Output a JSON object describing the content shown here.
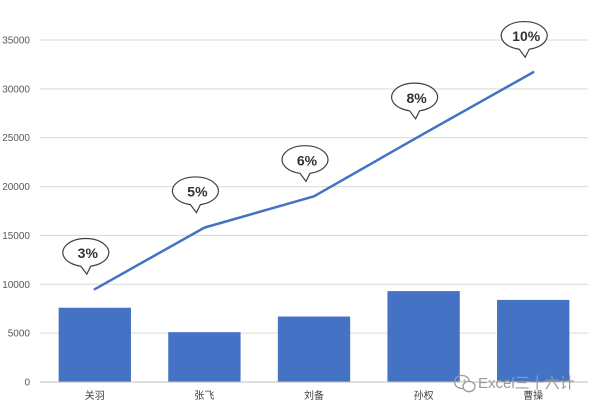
{
  "chart_data": {
    "type": "bar",
    "categories": [
      "关羽",
      "张飞",
      "刘备",
      "孙权",
      "曹操"
    ],
    "series": [
      {
        "type": "bar",
        "values": [
          7600,
          5100,
          6700,
          9300,
          8400
        ],
        "color": "#4472c4"
      },
      {
        "type": "line",
        "values": [
          9500,
          15800,
          19000,
          25400,
          31700
        ],
        "color": "#4472c4",
        "data_labels": [
          "3%",
          "5%",
          "6%",
          "8%",
          "10%"
        ]
      }
    ],
    "ylim": [
      0,
      35000
    ],
    "yticks": [
      0,
      5000,
      10000,
      15000,
      20000,
      25000,
      30000,
      35000
    ],
    "grid": true,
    "legend": "none"
  },
  "watermark": {
    "text": "Excel三十六计",
    "icon": "wechat-icon"
  }
}
